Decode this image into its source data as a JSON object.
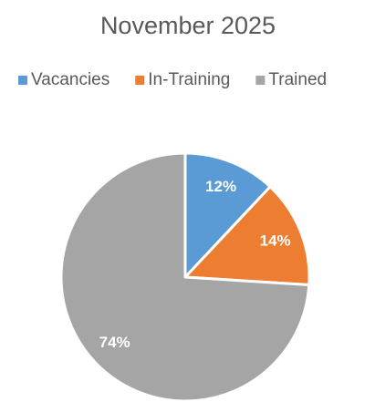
{
  "chart_data": {
    "type": "pie",
    "title": "November 2025",
    "categories": [
      "Vacancies",
      "In-Training",
      "Trained"
    ],
    "values": [
      12,
      14,
      74
    ],
    "value_labels": [
      "12%",
      "14%",
      "74%"
    ],
    "colors": [
      "#5b9bd5",
      "#ed7d31",
      "#a5a5a5"
    ],
    "legend": "top"
  }
}
